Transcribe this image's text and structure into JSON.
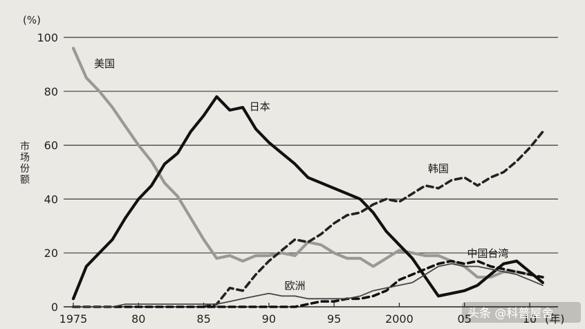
{
  "chart_data": {
    "type": "line",
    "title": "",
    "xlabel": "",
    "ylabel": "市场份额",
    "y_unit": "(%)",
    "x_unit": "(年)",
    "xlim": [
      1975,
      2011
    ],
    "ylim": [
      0,
      100
    ],
    "grid": true,
    "x_ticks": [
      {
        "value": 1975,
        "label": "1975"
      },
      {
        "value": 1980,
        "label": "80"
      },
      {
        "value": 1985,
        "label": "85"
      },
      {
        "value": 1990,
        "label": "90"
      },
      {
        "value": 1995,
        "label": "95"
      },
      {
        "value": 2000,
        "label": "2000"
      },
      {
        "value": 2005,
        "label": "05"
      },
      {
        "value": 2010,
        "label": "10"
      }
    ],
    "y_ticks": [
      0,
      20,
      40,
      60,
      80,
      100
    ],
    "series": [
      {
        "name": "美国",
        "color": "#9a9a94",
        "style": "solid",
        "points": [
          [
            1975,
            96
          ],
          [
            1976,
            85
          ],
          [
            1977,
            80
          ],
          [
            1978,
            74
          ],
          [
            1979,
            67
          ],
          [
            1980,
            60
          ],
          [
            1981,
            54
          ],
          [
            1982,
            46
          ],
          [
            1983,
            41
          ],
          [
            1984,
            33
          ],
          [
            1985,
            25
          ],
          [
            1986,
            18
          ],
          [
            1987,
            19
          ],
          [
            1988,
            17
          ],
          [
            1989,
            19
          ],
          [
            1990,
            19
          ],
          [
            1991,
            20
          ],
          [
            1992,
            19
          ],
          [
            1993,
            24
          ],
          [
            1994,
            23
          ],
          [
            1995,
            20
          ],
          [
            1996,
            18
          ],
          [
            1997,
            18
          ],
          [
            1998,
            15
          ],
          [
            1999,
            18
          ],
          [
            2000,
            21
          ],
          [
            2001,
            20
          ],
          [
            2002,
            19
          ],
          [
            2003,
            19
          ],
          [
            2004,
            17
          ],
          [
            2005,
            15
          ],
          [
            2006,
            11
          ],
          [
            2007,
            11
          ],
          [
            2008,
            13
          ],
          [
            2009,
            13
          ],
          [
            2010,
            12
          ]
        ]
      },
      {
        "name": "日本",
        "color": "#111111",
        "style": "solid",
        "points": [
          [
            1975,
            3
          ],
          [
            1976,
            15
          ],
          [
            1977,
            20
          ],
          [
            1978,
            25
          ],
          [
            1979,
            33
          ],
          [
            1980,
            40
          ],
          [
            1981,
            45
          ],
          [
            1982,
            53
          ],
          [
            1983,
            57
          ],
          [
            1984,
            65
          ],
          [
            1985,
            71
          ],
          [
            1986,
            78
          ],
          [
            1987,
            73
          ],
          [
            1988,
            74
          ],
          [
            1989,
            66
          ],
          [
            1990,
            61
          ],
          [
            1991,
            57
          ],
          [
            1992,
            53
          ],
          [
            1993,
            48
          ],
          [
            1994,
            46
          ],
          [
            1995,
            44
          ],
          [
            1996,
            42
          ],
          [
            1997,
            40
          ],
          [
            1998,
            35
          ],
          [
            1999,
            28
          ],
          [
            2000,
            23
          ],
          [
            2001,
            18
          ],
          [
            2002,
            11
          ],
          [
            2003,
            4
          ],
          [
            2004,
            5
          ],
          [
            2005,
            6
          ],
          [
            2006,
            8
          ],
          [
            2007,
            12
          ],
          [
            2008,
            16
          ],
          [
            2009,
            17
          ],
          [
            2010,
            13
          ],
          [
            2011,
            9
          ]
        ]
      },
      {
        "name": "韩国",
        "color": "#222222",
        "style": "dashed",
        "points": [
          [
            1985,
            0
          ],
          [
            1986,
            1
          ],
          [
            1987,
            7
          ],
          [
            1988,
            6
          ],
          [
            1989,
            12
          ],
          [
            1990,
            17
          ],
          [
            1991,
            21
          ],
          [
            1992,
            25
          ],
          [
            1993,
            24
          ],
          [
            1994,
            27
          ],
          [
            1995,
            31
          ],
          [
            1996,
            34
          ],
          [
            1997,
            35
          ],
          [
            1998,
            38
          ],
          [
            1999,
            40
          ],
          [
            2000,
            39
          ],
          [
            2001,
            42
          ],
          [
            2002,
            45
          ],
          [
            2003,
            44
          ],
          [
            2004,
            47
          ],
          [
            2005,
            48
          ],
          [
            2006,
            45
          ],
          [
            2007,
            48
          ],
          [
            2008,
            50
          ],
          [
            2009,
            54
          ],
          [
            2010,
            59
          ],
          [
            2011,
            65
          ]
        ]
      },
      {
        "name": "中国台湾",
        "color": "#111111",
        "style": "dashed",
        "points": [
          [
            1975,
            0
          ],
          [
            1985,
            0
          ],
          [
            1992,
            0
          ],
          [
            1993,
            1
          ],
          [
            1994,
            2
          ],
          [
            1995,
            2
          ],
          [
            1996,
            3
          ],
          [
            1997,
            3
          ],
          [
            1998,
            4
          ],
          [
            1999,
            6
          ],
          [
            2000,
            10
          ],
          [
            2001,
            12
          ],
          [
            2002,
            14
          ],
          [
            2003,
            16
          ],
          [
            2004,
            17
          ],
          [
            2005,
            16
          ],
          [
            2006,
            17
          ],
          [
            2007,
            15
          ],
          [
            2008,
            14
          ],
          [
            2009,
            13
          ],
          [
            2010,
            12
          ],
          [
            2011,
            11
          ]
        ]
      },
      {
        "name": "欧洲",
        "color": "#444444",
        "style": "solid-thin",
        "points": [
          [
            1975,
            0
          ],
          [
            1978,
            0
          ],
          [
            1979,
            1
          ],
          [
            1985,
            1
          ],
          [
            1986,
            1
          ],
          [
            1987,
            2
          ],
          [
            1988,
            3
          ],
          [
            1989,
            4
          ],
          [
            1990,
            5
          ],
          [
            1991,
            4
          ],
          [
            1992,
            4
          ],
          [
            1993,
            3
          ],
          [
            1994,
            3
          ],
          [
            1995,
            3
          ],
          [
            1996,
            3
          ],
          [
            1997,
            4
          ],
          [
            1998,
            6
          ],
          [
            1999,
            7
          ],
          [
            2000,
            8
          ],
          [
            2001,
            9
          ],
          [
            2002,
            12
          ],
          [
            2003,
            15
          ],
          [
            2004,
            16
          ],
          [
            2005,
            15
          ],
          [
            2006,
            15
          ],
          [
            2007,
            14
          ],
          [
            2008,
            13
          ],
          [
            2009,
            12
          ],
          [
            2010,
            10
          ],
          [
            2011,
            8
          ]
        ]
      }
    ],
    "series_label_positions": [
      {
        "series": "美国",
        "x": 1976.6,
        "y": 89
      },
      {
        "series": "日本",
        "x": 1988.5,
        "y": 73
      },
      {
        "series": "韩国",
        "x": 2002.2,
        "y": 50
      },
      {
        "series": "中国台湾",
        "x": 2005.2,
        "y": 18.5
      },
      {
        "series": "欧洲",
        "x": 1991.2,
        "y": 6.5
      }
    ]
  },
  "watermark": {
    "text": "头条 @科普屋舍"
  }
}
